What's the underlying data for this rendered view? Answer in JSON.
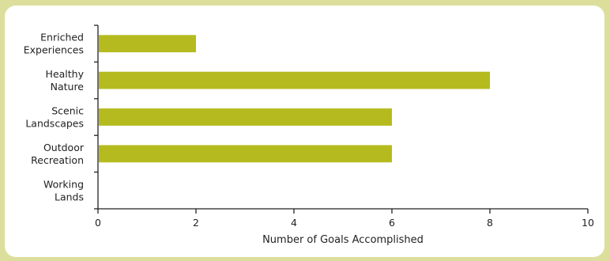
{
  "chart_data": {
    "type": "bar",
    "orientation": "horizontal",
    "categories": [
      [
        "Enriched",
        "Experiences"
      ],
      [
        "Healthy",
        "Nature"
      ],
      [
        "Scenic",
        "Landscapes"
      ],
      [
        "Outdoor",
        "Recreation"
      ],
      [
        "Working",
        "Lands"
      ]
    ],
    "values": [
      2,
      8,
      6,
      6,
      0
    ],
    "xlabel": "Number of Goals Accomplished",
    "ylabel": "",
    "xlim": [
      0,
      10
    ],
    "xticks": [
      "0",
      "2",
      "4",
      "6",
      "8",
      "10"
    ],
    "grid": false,
    "bar_color": "#b5bb1e",
    "axis_color": "#222222"
  }
}
